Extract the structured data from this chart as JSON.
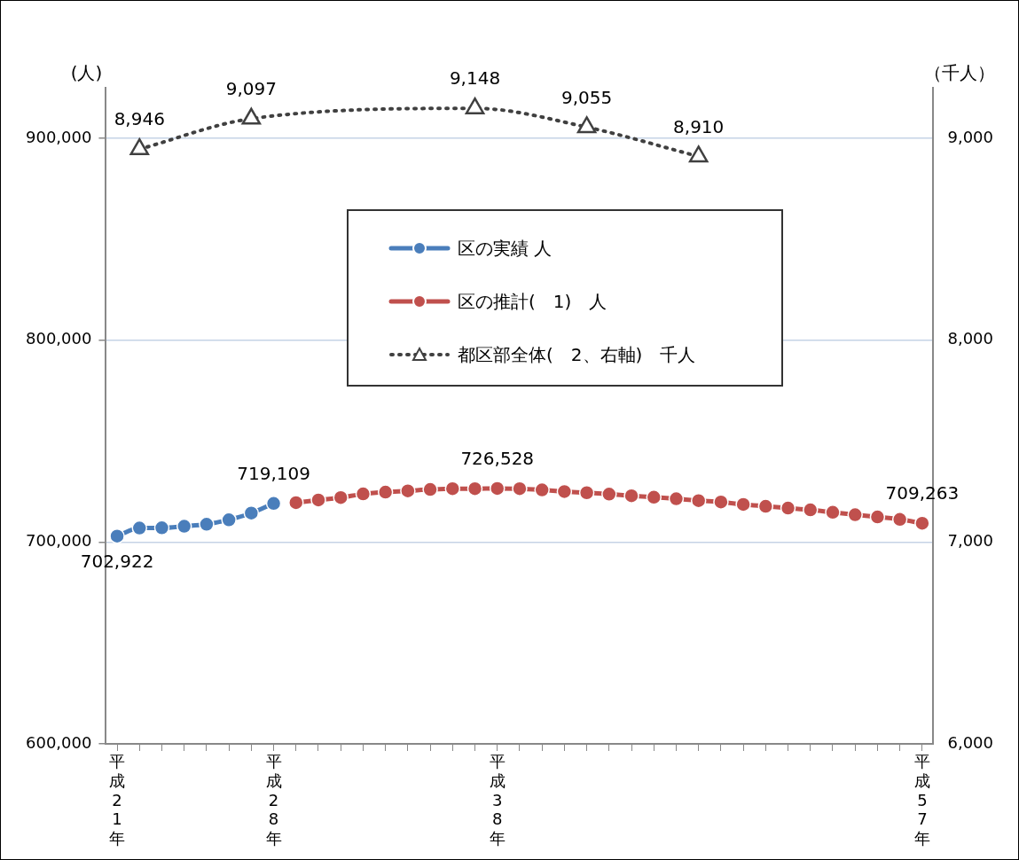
{
  "chart_data": {
    "type": "line",
    "ylabel": "(人)",
    "y2label": "（千人）",
    "categories": [
      "平成21年",
      null,
      null,
      null,
      null,
      null,
      null,
      "平成28年",
      null,
      null,
      null,
      null,
      null,
      null,
      null,
      null,
      null,
      "平成38年",
      null,
      null,
      null,
      null,
      null,
      null,
      null,
      null,
      null,
      null,
      null,
      null,
      null,
      null,
      null,
      null,
      null,
      null,
      "平成57年"
    ],
    "series": [
      {
        "name": "区の実績  人",
        "color": "#4a7ebb",
        "marker": "circle",
        "line_style": "solid",
        "values": [
          702922,
          706900,
          707000,
          707800,
          708800,
          711000,
          714300,
          719109,
          null,
          null,
          null,
          null,
          null,
          null,
          null,
          null,
          null,
          null,
          null,
          null,
          null,
          null,
          null,
          null,
          null,
          null,
          null,
          null,
          null,
          null,
          null,
          null,
          null,
          null,
          null,
          null,
          null
        ],
        "value_labels": [
          "702,922",
          null,
          null,
          null,
          null,
          null,
          null,
          "719,109",
          null,
          null,
          null,
          null,
          null,
          null,
          null,
          null,
          null,
          null,
          null,
          null,
          null,
          null,
          null,
          null,
          null,
          null,
          null,
          null,
          null,
          null,
          null,
          null,
          null,
          null,
          null,
          null,
          null
        ]
      },
      {
        "name": "区の推計(　1)　人",
        "color": "#c0504d",
        "marker": "circle",
        "line_style": "solid",
        "values": [
          null,
          null,
          null,
          null,
          null,
          null,
          null,
          null,
          719500,
          720800,
          722000,
          723800,
          724700,
          725300,
          726000,
          726400,
          726400,
          726528,
          726400,
          725800,
          725000,
          724400,
          723700,
          722900,
          722200,
          721400,
          720500,
          719800,
          718600,
          717700,
          716800,
          715900,
          714700,
          713500,
          712400,
          711200,
          709263
        ],
        "value_labels": [
          null,
          null,
          null,
          null,
          null,
          null,
          null,
          null,
          null,
          null,
          null,
          null,
          null,
          null,
          null,
          null,
          null,
          "726,528",
          null,
          null,
          null,
          null,
          null,
          null,
          null,
          null,
          null,
          null,
          null,
          null,
          null,
          null,
          null,
          null,
          null,
          null,
          "709,263"
        ]
      },
      {
        "name": "都区部全体(　2、右軸)　千人",
        "color": "#404040",
        "marker": "triangle",
        "line_style": "dotted",
        "axis": "y2",
        "values": [
          null,
          8946,
          null,
          null,
          null,
          null,
          9097,
          null,
          null,
          null,
          null,
          null,
          null,
          null,
          null,
          null,
          9148,
          null,
          null,
          null,
          null,
          9055,
          null,
          null,
          null,
          null,
          8910,
          null,
          null,
          null,
          null,
          null,
          null,
          null,
          null,
          null,
          null
        ],
        "value_labels": [
          null,
          "8,946",
          null,
          null,
          null,
          null,
          "9,097",
          null,
          null,
          null,
          null,
          null,
          null,
          null,
          null,
          null,
          "9,148",
          null,
          null,
          null,
          null,
          "9,055",
          null,
          null,
          null,
          null,
          "8,910",
          null,
          null,
          null,
          null,
          null,
          null,
          null,
          null,
          null,
          null
        ]
      }
    ],
    "ylim": [
      600000,
      925000
    ],
    "yticks": [
      {
        "value": 600000,
        "label": "600,000"
      },
      {
        "value": 700000,
        "label": "700,000"
      },
      {
        "value": 800000,
        "label": "800,000"
      },
      {
        "value": 900000,
        "label": "900,000"
      }
    ],
    "y2lim": [
      6000,
      9250
    ],
    "y2ticks": [
      {
        "value": 6000,
        "label": "6,000"
      },
      {
        "value": 7000,
        "label": "7,000"
      },
      {
        "value": 8000,
        "label": "8,000"
      },
      {
        "value": 9000,
        "label": "9,000"
      }
    ],
    "grid": "y",
    "legend": "top"
  }
}
